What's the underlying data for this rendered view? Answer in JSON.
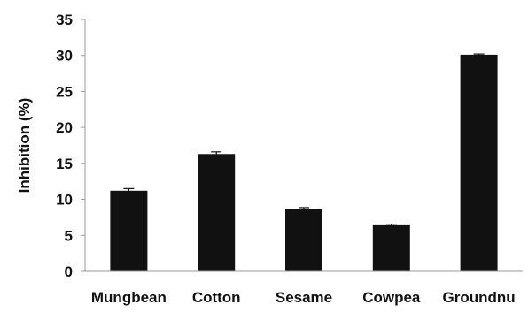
{
  "chart_data": {
    "type": "bar",
    "title": "",
    "xlabel": "",
    "ylabel": "Inhibition (%)",
    "ylim": [
      0,
      35
    ],
    "yticks": [
      0,
      5,
      10,
      15,
      20,
      25,
      30,
      35
    ],
    "grid": false,
    "legend": "none",
    "categories": [
      "Mungbean",
      "Cotton",
      "Sesame",
      "Cowpea",
      "Groundnu"
    ],
    "values": [
      11.2,
      16.3,
      8.7,
      6.4,
      30.1
    ],
    "errors": [
      0.3,
      0.3,
      0.15,
      0.15,
      0.1
    ],
    "bar_color": "#111111"
  }
}
